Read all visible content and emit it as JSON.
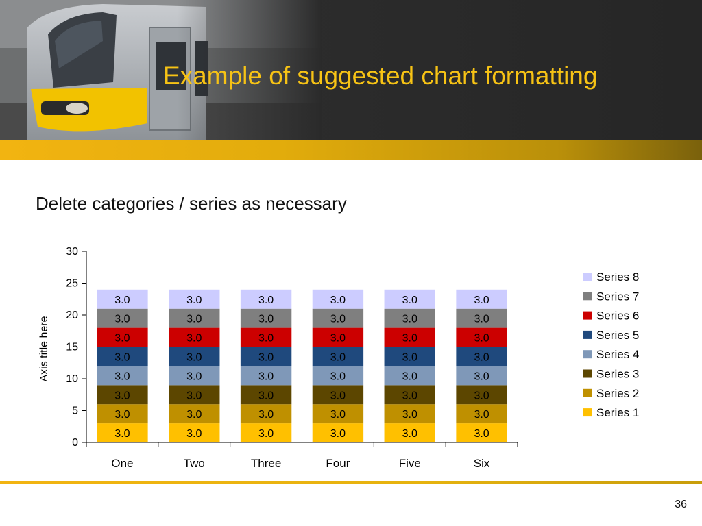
{
  "slide": {
    "title": "Example of suggested chart formatting",
    "subtitle": "Delete categories / series as necessary",
    "page_number": "36"
  },
  "colors": {
    "title": "#f7c315",
    "band": "#f2b411"
  },
  "chart_data": {
    "type": "bar",
    "stacked": true,
    "categories": [
      "One",
      "Two",
      "Three",
      "Four",
      "Five",
      "Six"
    ],
    "ylabel": "Axis title here",
    "xlabel": "",
    "ylim": [
      0,
      30
    ],
    "yticks": [
      0,
      5,
      10,
      15,
      20,
      25,
      30
    ],
    "data_label_format": "0.0",
    "legend_position": "right",
    "grid": false,
    "series": [
      {
        "name": "Series 1",
        "color": "#ffc000",
        "values": [
          3,
          3,
          3,
          3,
          3,
          3
        ]
      },
      {
        "name": "Series 2",
        "color": "#bf9000",
        "values": [
          3,
          3,
          3,
          3,
          3,
          3
        ]
      },
      {
        "name": "Series 3",
        "color": "#5c4600",
        "values": [
          3,
          3,
          3,
          3,
          3,
          3
        ]
      },
      {
        "name": "Series 4",
        "color": "#7f98b8",
        "values": [
          3,
          3,
          3,
          3,
          3,
          3
        ]
      },
      {
        "name": "Series 5",
        "color": "#1f497d",
        "values": [
          3,
          3,
          3,
          3,
          3,
          3
        ]
      },
      {
        "name": "Series 6",
        "color": "#cc0000",
        "values": [
          3,
          3,
          3,
          3,
          3,
          3
        ]
      },
      {
        "name": "Series 7",
        "color": "#7f7f7f",
        "values": [
          3,
          3,
          3,
          3,
          3,
          3
        ]
      },
      {
        "name": "Series 8",
        "color": "#ccccff",
        "values": [
          3,
          3,
          3,
          3,
          3,
          3
        ]
      }
    ]
  }
}
